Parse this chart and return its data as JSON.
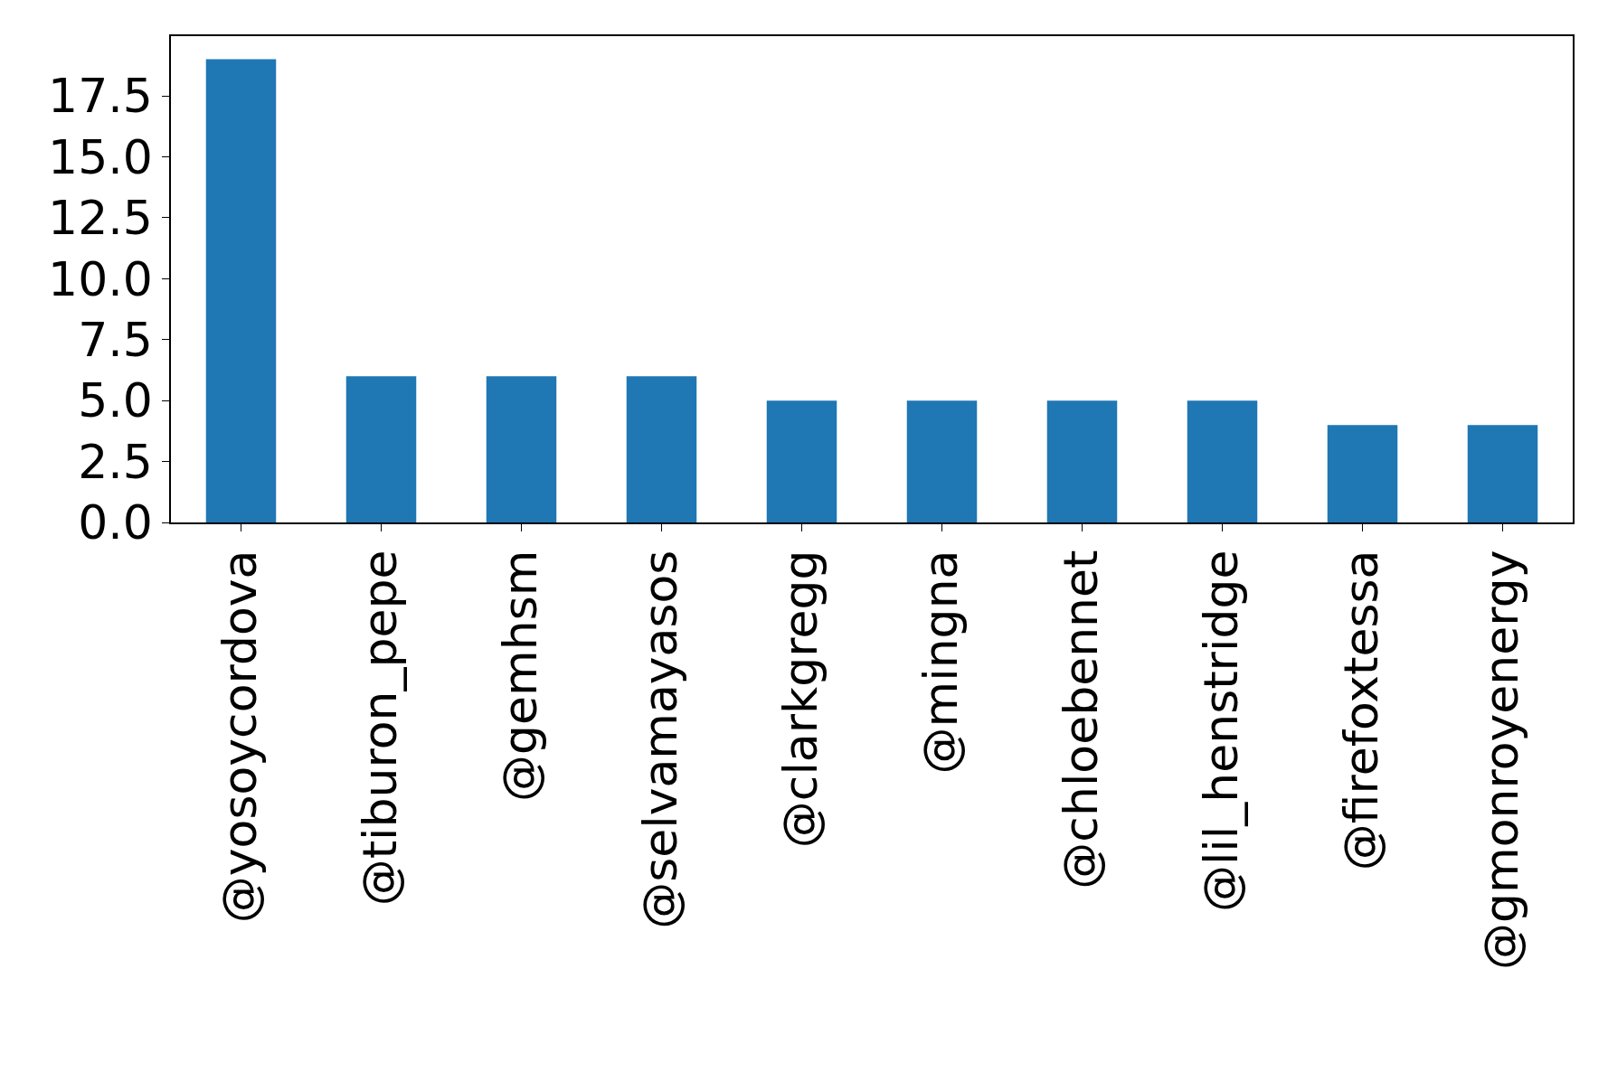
{
  "chart_data": {
    "type": "bar",
    "categories": [
      "@yosoycordova",
      "@tiburon_pepe",
      "@gemhsm",
      "@selvamayasos",
      "@clarkgregg",
      "@mingna",
      "@chloebennet",
      "@lil_henstridge",
      "@firefoxtessa",
      "@gmonroyenergy"
    ],
    "values": [
      19,
      6,
      6,
      6,
      5,
      5,
      5,
      5,
      4,
      4
    ],
    "color": "#1f77b4",
    "ylim": [
      0,
      19.95
    ],
    "yticks": [
      {
        "value": 0,
        "label": "0.0"
      },
      {
        "value": 2.5,
        "label": "2.5"
      },
      {
        "value": 5,
        "label": "5.0"
      },
      {
        "value": 7.5,
        "label": "7.5"
      },
      {
        "value": 10,
        "label": "10.0"
      },
      {
        "value": 12.5,
        "label": "12.5"
      },
      {
        "value": 15,
        "label": "15.0"
      },
      {
        "value": 17.5,
        "label": "17.5"
      }
    ],
    "grid": false
  }
}
